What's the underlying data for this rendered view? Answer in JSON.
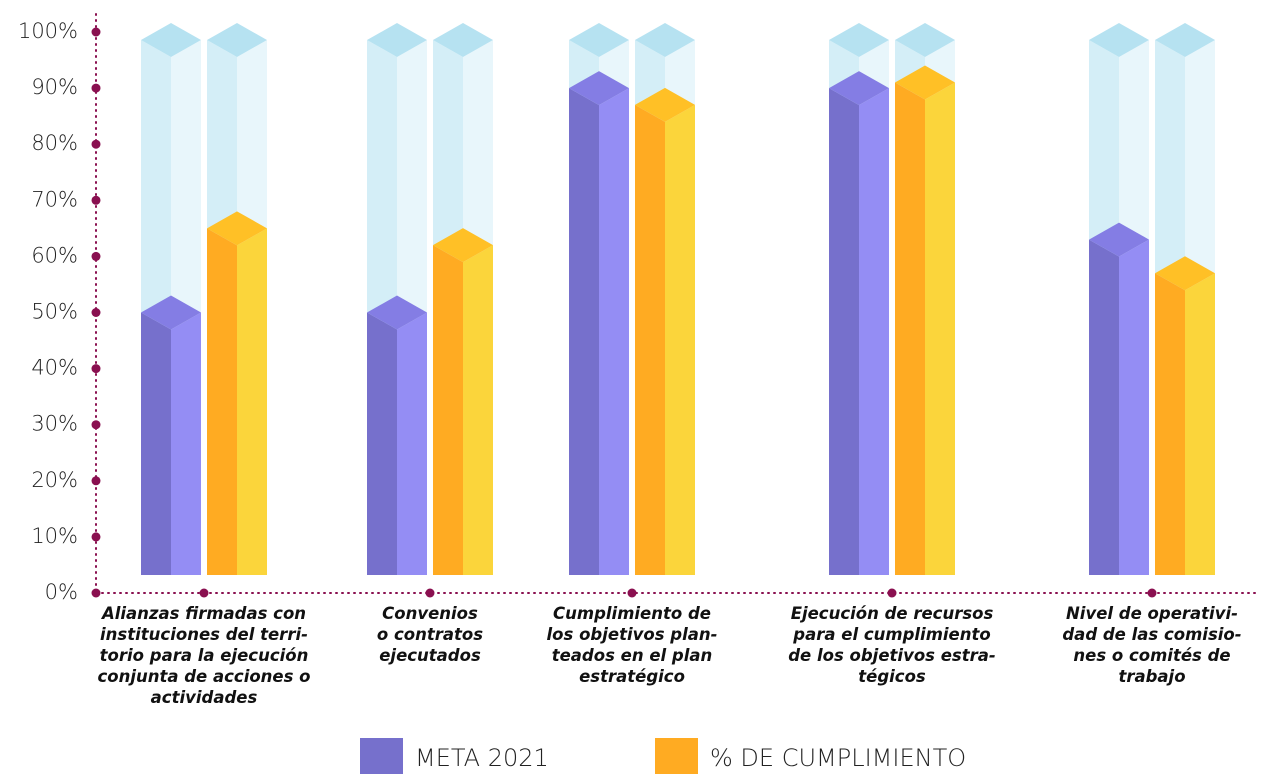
{
  "chart_data": {
    "type": "bar3d",
    "categories": [
      "Alianzas firmadas con\ninstituciones del terri-\ntorio para la ejecución\nconjunta de acciones o\nactividades",
      "Convenios\no contratos\nejecutados",
      "Cumplimiento de\nlos objetivos plan-\nteados en el plan\nestratégico",
      "Ejecución de recursos\npara el cumplimiento\nde los objetivos estra-\ntégicos",
      "Nivel de operativi-\ndad de las comisio-\nnes o comités de\ntrabajo"
    ],
    "series": [
      {
        "name": "META 2021",
        "color": "#7670cc",
        "values": [
          50,
          50,
          90,
          90,
          63
        ]
      },
      {
        "name": "% DE CUMPLIMIENTO",
        "color": "#ffab22",
        "values": [
          65,
          62,
          87,
          91,
          57
        ]
      }
    ],
    "ylim": [
      0,
      100
    ],
    "yticks": [
      {
        "value": 0,
        "label": "0%"
      },
      {
        "value": 10,
        "label": "10%"
      },
      {
        "value": 20,
        "label": "20%"
      },
      {
        "value": 30,
        "label": "30%"
      },
      {
        "value": 40,
        "label": "40%"
      },
      {
        "value": 50,
        "label": "50%"
      },
      {
        "value": 60,
        "label": "60%"
      },
      {
        "value": 70,
        "label": "70%"
      },
      {
        "value": 80,
        "label": "80%"
      },
      {
        "value": 90,
        "label": "90%"
      },
      {
        "value": 100,
        "label": "100%"
      }
    ],
    "legend": "bottom"
  }
}
